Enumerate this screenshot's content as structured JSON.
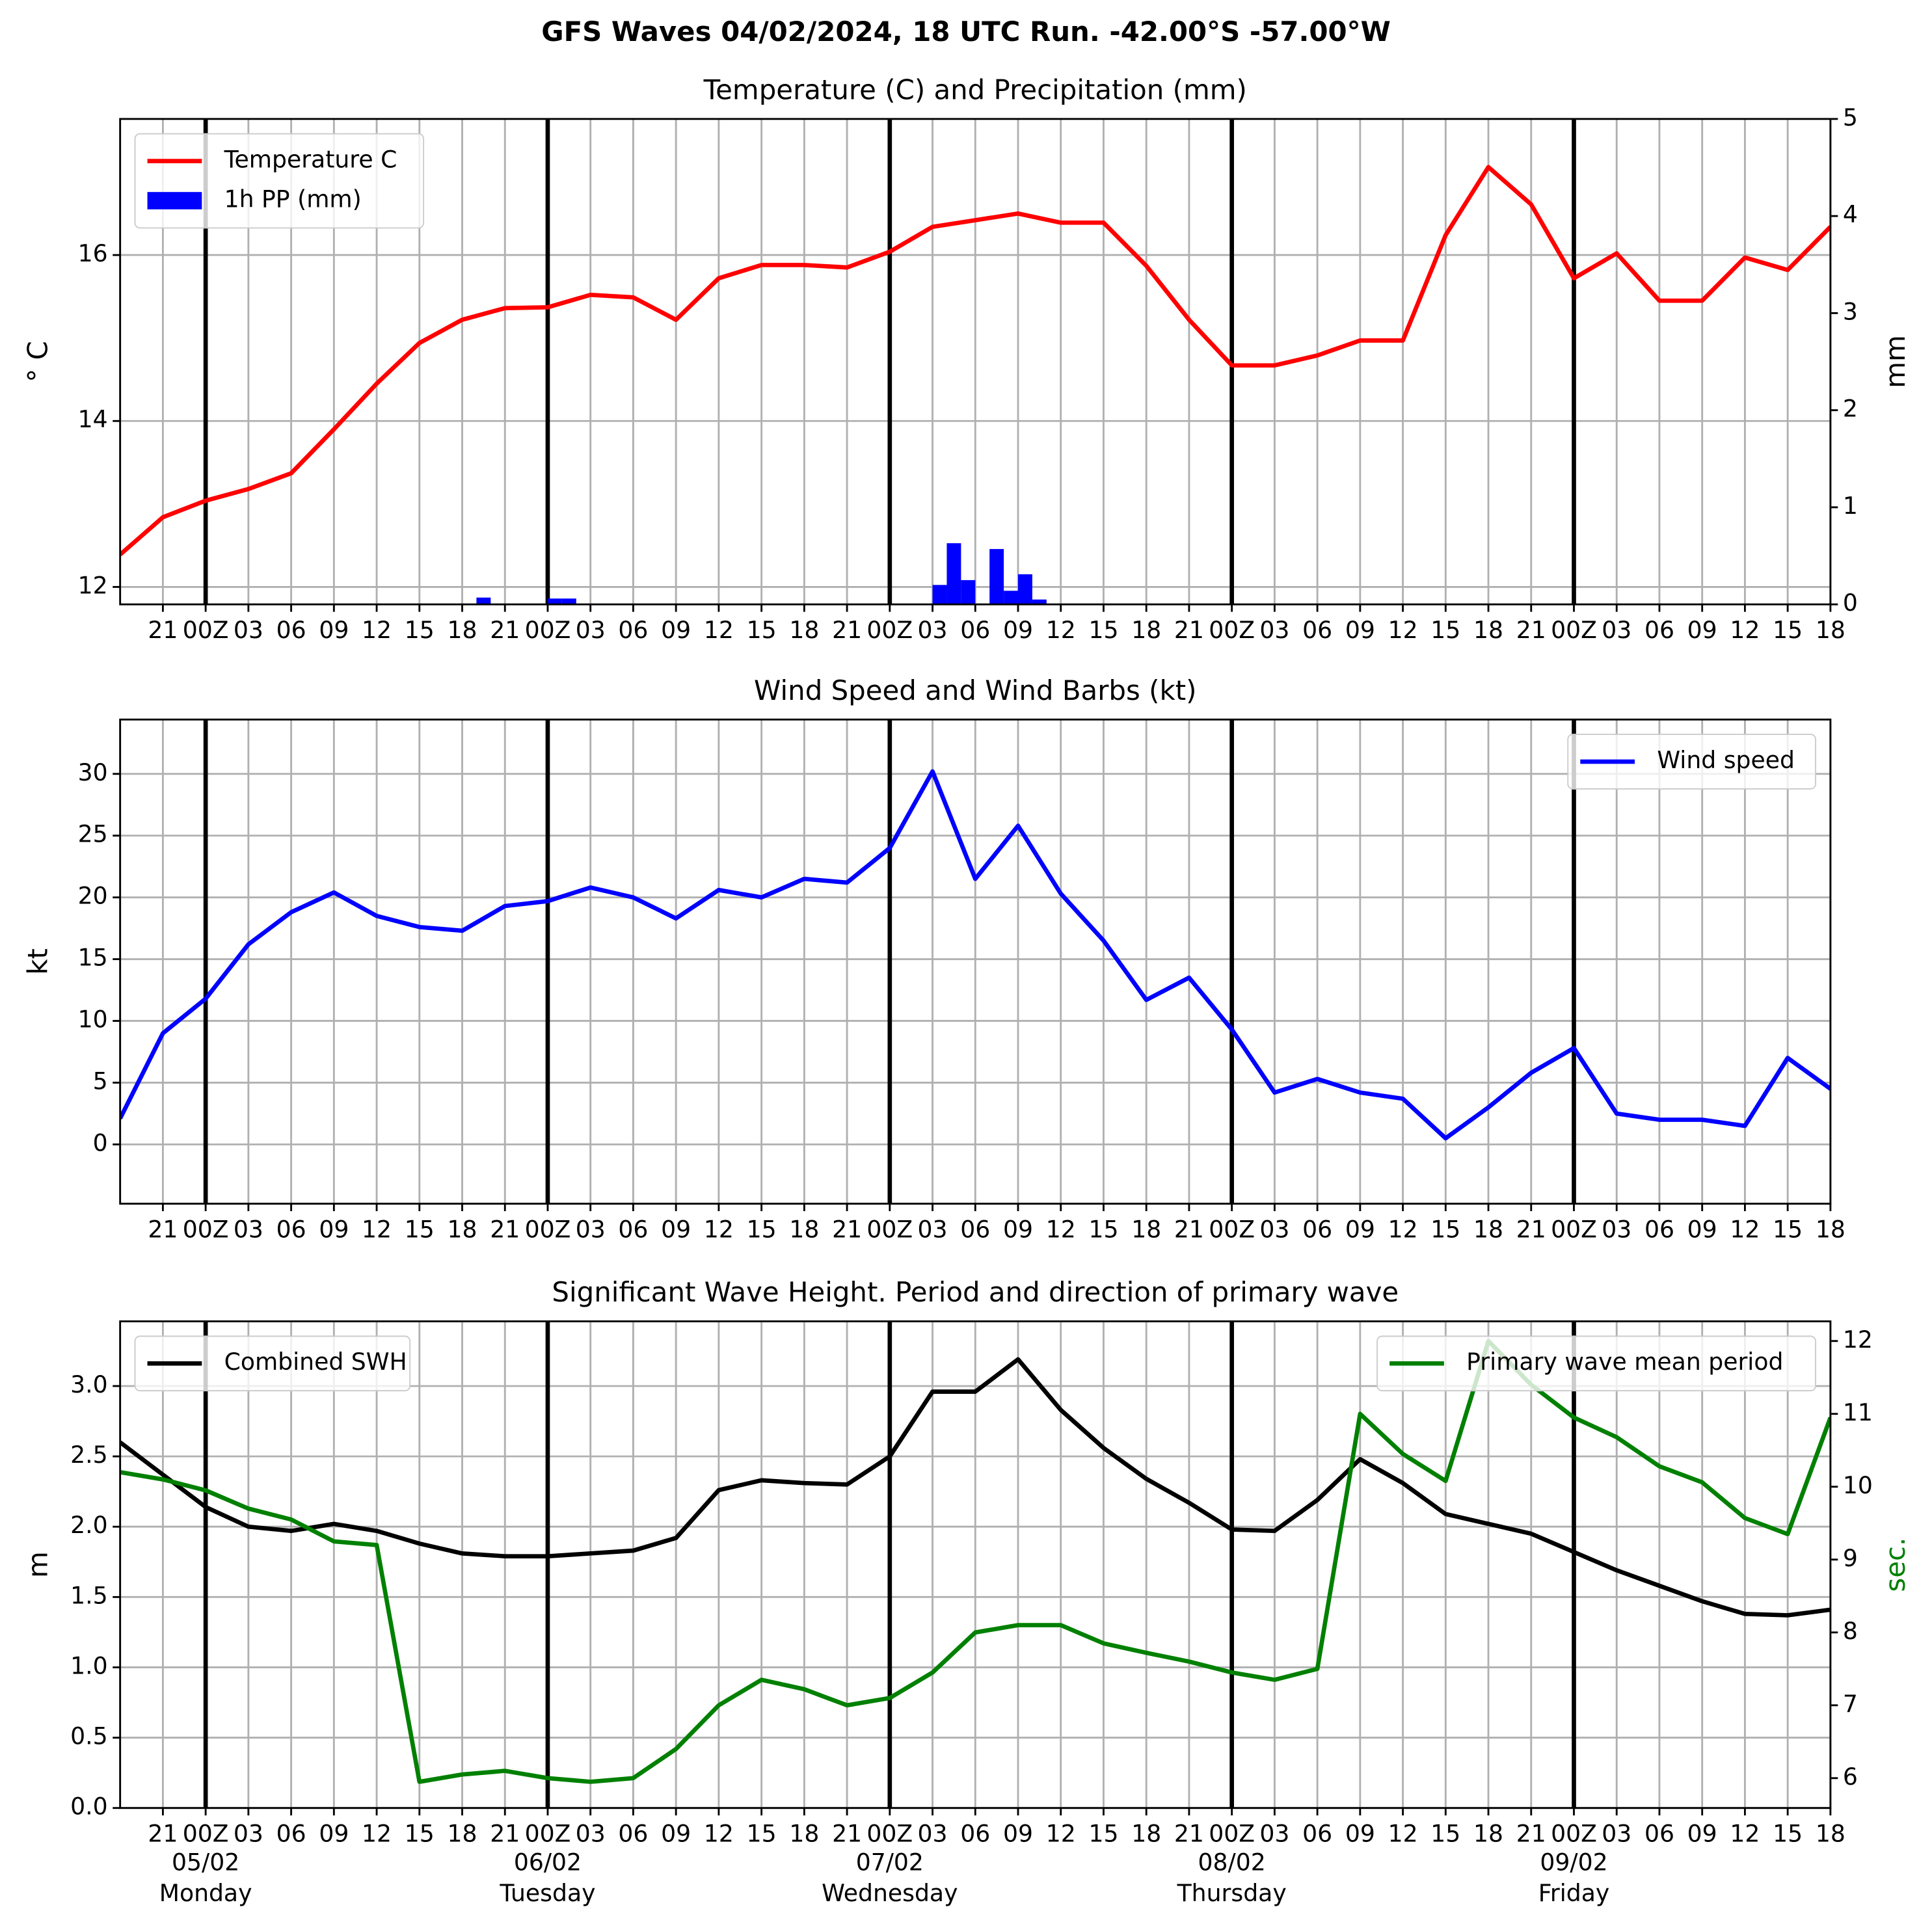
{
  "title": "GFS Waves 04/02/2024, 18 UTC Run. -42.00°S -57.00°W",
  "chart_data": [
    {
      "type": "line",
      "title": "Temperature (C) and Precipitation (mm)",
      "ylabel": "° C",
      "y2label": "mm",
      "grid": true,
      "xlim": [
        0,
        120
      ],
      "xticks": [
        {
          "value": 3,
          "label": "21"
        },
        {
          "value": 6,
          "label": "00Z"
        },
        {
          "value": 9,
          "label": "03"
        },
        {
          "value": 12,
          "label": "06"
        },
        {
          "value": 15,
          "label": "09"
        },
        {
          "value": 18,
          "label": "12"
        },
        {
          "value": 21,
          "label": "15"
        },
        {
          "value": 24,
          "label": "18"
        },
        {
          "value": 27,
          "label": "21"
        },
        {
          "value": 30,
          "label": "00Z"
        },
        {
          "value": 33,
          "label": "03"
        },
        {
          "value": 36,
          "label": "06"
        },
        {
          "value": 39,
          "label": "09"
        },
        {
          "value": 42,
          "label": "12"
        },
        {
          "value": 45,
          "label": "15"
        },
        {
          "value": 48,
          "label": "18"
        },
        {
          "value": 51,
          "label": "21"
        },
        {
          "value": 54,
          "label": "00Z"
        },
        {
          "value": 57,
          "label": "03"
        },
        {
          "value": 60,
          "label": "06"
        },
        {
          "value": 63,
          "label": "09"
        },
        {
          "value": 66,
          "label": "12"
        },
        {
          "value": 69,
          "label": "15"
        },
        {
          "value": 72,
          "label": "18"
        },
        {
          "value": 75,
          "label": "21"
        },
        {
          "value": 78,
          "label": "00Z"
        },
        {
          "value": 81,
          "label": "03"
        },
        {
          "value": 84,
          "label": "06"
        },
        {
          "value": 87,
          "label": "09"
        },
        {
          "value": 90,
          "label": "12"
        },
        {
          "value": 93,
          "label": "15"
        },
        {
          "value": 96,
          "label": "18"
        },
        {
          "value": 99,
          "label": "21"
        },
        {
          "value": 102,
          "label": "00Z"
        },
        {
          "value": 105,
          "label": "03"
        },
        {
          "value": 108,
          "label": "06"
        },
        {
          "value": 111,
          "label": "09"
        },
        {
          "value": 114,
          "label": "12"
        },
        {
          "value": 117,
          "label": "15"
        },
        {
          "value": 120,
          "label": "18"
        }
      ],
      "ylim": [
        11.79,
        17.64
      ],
      "yticks": [
        12,
        14,
        16
      ],
      "y2lim": [
        0,
        5
      ],
      "y2ticks": [
        0,
        1,
        2,
        3,
        4,
        5
      ],
      "x": [
        0,
        3,
        6,
        9,
        12,
        15,
        18,
        21,
        24,
        27,
        30,
        33,
        36,
        39,
        42,
        45,
        48,
        51,
        54,
        57,
        60,
        63,
        66,
        69,
        72,
        75,
        78,
        81,
        84,
        87,
        90,
        93,
        96,
        99,
        102,
        105,
        108,
        111,
        114,
        117,
        120
      ],
      "series": [
        {
          "name": "Temperature C",
          "color": "#ff0000",
          "legend": "upper left",
          "values": [
            12.39,
            12.84,
            13.04,
            13.18,
            13.37,
            13.9,
            14.45,
            14.94,
            15.22,
            15.36,
            15.37,
            15.52,
            15.49,
            15.22,
            15.72,
            15.88,
            15.88,
            15.85,
            16.04,
            16.34,
            16.42,
            16.5,
            16.39,
            16.39,
            15.87,
            15.22,
            14.67,
            14.67,
            14.79,
            14.97,
            14.97,
            16.24,
            17.06,
            16.61,
            15.72,
            16.02,
            15.45,
            15.45,
            15.97,
            15.82,
            16.34
          ]
        },
        {
          "name": "1h PP (mm)",
          "type": "bar",
          "axis": "y2",
          "color": "#0000ff",
          "legend": "upper left",
          "x": [
            25,
            30,
            31,
            57,
            58,
            59,
            61,
            62,
            63,
            64
          ],
          "values": [
            0.07,
            0.06,
            0.06,
            0.2,
            0.63,
            0.25,
            0.57,
            0.14,
            0.31,
            0.05
          ]
        }
      ]
    },
    {
      "type": "line",
      "title": "Wind Speed and Wind Barbs (kt)",
      "ylabel": "kt",
      "grid": true,
      "xlim": [
        0,
        120
      ],
      "xticks": [
        {
          "value": 3,
          "label": "21"
        },
        {
          "value": 6,
          "label": "00Z"
        },
        {
          "value": 9,
          "label": "03"
        },
        {
          "value": 12,
          "label": "06"
        },
        {
          "value": 15,
          "label": "09"
        },
        {
          "value": 18,
          "label": "12"
        },
        {
          "value": 21,
          "label": "15"
        },
        {
          "value": 24,
          "label": "18"
        },
        {
          "value": 27,
          "label": "21"
        },
        {
          "value": 30,
          "label": "00Z"
        },
        {
          "value": 33,
          "label": "03"
        },
        {
          "value": 36,
          "label": "06"
        },
        {
          "value": 39,
          "label": "09"
        },
        {
          "value": 42,
          "label": "12"
        },
        {
          "value": 45,
          "label": "15"
        },
        {
          "value": 48,
          "label": "18"
        },
        {
          "value": 51,
          "label": "21"
        },
        {
          "value": 54,
          "label": "00Z"
        },
        {
          "value": 57,
          "label": "03"
        },
        {
          "value": 60,
          "label": "06"
        },
        {
          "value": 63,
          "label": "09"
        },
        {
          "value": 66,
          "label": "12"
        },
        {
          "value": 69,
          "label": "15"
        },
        {
          "value": 72,
          "label": "18"
        },
        {
          "value": 75,
          "label": "21"
        },
        {
          "value": 78,
          "label": "00Z"
        },
        {
          "value": 81,
          "label": "03"
        },
        {
          "value": 84,
          "label": "06"
        },
        {
          "value": 87,
          "label": "09"
        },
        {
          "value": 90,
          "label": "12"
        },
        {
          "value": 93,
          "label": "15"
        },
        {
          "value": 96,
          "label": "18"
        },
        {
          "value": 99,
          "label": "21"
        },
        {
          "value": 102,
          "label": "00Z"
        },
        {
          "value": 105,
          "label": "03"
        },
        {
          "value": 108,
          "label": "06"
        },
        {
          "value": 111,
          "label": "09"
        },
        {
          "value": 114,
          "label": "12"
        },
        {
          "value": 117,
          "label": "15"
        },
        {
          "value": 120,
          "label": "18"
        }
      ],
      "ylim": [
        -4.8,
        34.4
      ],
      "yticks": [
        0,
        5,
        10,
        15,
        20,
        25,
        30
      ],
      "x": [
        0,
        3,
        6,
        9,
        12,
        15,
        18,
        21,
        24,
        27,
        30,
        33,
        36,
        39,
        42,
        45,
        48,
        51,
        54,
        57,
        60,
        63,
        66,
        69,
        72,
        75,
        78,
        81,
        84,
        87,
        90,
        93,
        96,
        99,
        102,
        105,
        108,
        111,
        114,
        117,
        120
      ],
      "series": [
        {
          "name": "Wind speed",
          "color": "#0000ff",
          "legend": "upper right",
          "values": [
            2.1,
            9.0,
            11.8,
            16.2,
            18.8,
            20.4,
            18.5,
            17.6,
            17.3,
            19.3,
            19.7,
            20.8,
            20.0,
            18.3,
            20.6,
            20.0,
            21.5,
            21.2,
            24.0,
            30.2,
            21.5,
            25.8,
            20.3,
            16.5,
            11.7,
            13.5,
            9.3,
            4.2,
            5.3,
            4.2,
            3.7,
            0.5,
            3.0,
            5.8,
            7.8,
            2.5,
            2.0,
            2.0,
            1.5,
            7.0,
            4.5
          ]
        }
      ]
    },
    {
      "type": "line",
      "title": "Significant Wave Height. Period and direction of primary wave",
      "ylabel": "m",
      "y2label": "sec.",
      "y2color": "#008000",
      "grid": true,
      "xlim": [
        0,
        120
      ],
      "xticks": [
        {
          "value": 3,
          "label": "21"
        },
        {
          "value": 6,
          "label": "00Z"
        },
        {
          "value": 9,
          "label": "03"
        },
        {
          "value": 12,
          "label": "06"
        },
        {
          "value": 15,
          "label": "09"
        },
        {
          "value": 18,
          "label": "12"
        },
        {
          "value": 21,
          "label": "15"
        },
        {
          "value": 24,
          "label": "18"
        },
        {
          "value": 27,
          "label": "21"
        },
        {
          "value": 30,
          "label": "00Z"
        },
        {
          "value": 33,
          "label": "03"
        },
        {
          "value": 36,
          "label": "06"
        },
        {
          "value": 39,
          "label": "09"
        },
        {
          "value": 42,
          "label": "12"
        },
        {
          "value": 45,
          "label": "15"
        },
        {
          "value": 48,
          "label": "18"
        },
        {
          "value": 51,
          "label": "21"
        },
        {
          "value": 54,
          "label": "00Z"
        },
        {
          "value": 57,
          "label": "03"
        },
        {
          "value": 60,
          "label": "06"
        },
        {
          "value": 63,
          "label": "09"
        },
        {
          "value": 66,
          "label": "12"
        },
        {
          "value": 69,
          "label": "15"
        },
        {
          "value": 72,
          "label": "18"
        },
        {
          "value": 75,
          "label": "21"
        },
        {
          "value": 78,
          "label": "00Z"
        },
        {
          "value": 81,
          "label": "03"
        },
        {
          "value": 84,
          "label": "06"
        },
        {
          "value": 87,
          "label": "09"
        },
        {
          "value": 90,
          "label": "12"
        },
        {
          "value": 93,
          "label": "15"
        },
        {
          "value": 96,
          "label": "18"
        },
        {
          "value": 99,
          "label": "21"
        },
        {
          "value": 102,
          "label": "00Z"
        },
        {
          "value": 105,
          "label": "03"
        },
        {
          "value": 108,
          "label": "06"
        },
        {
          "value": 111,
          "label": "09"
        },
        {
          "value": 114,
          "label": "12"
        },
        {
          "value": 117,
          "label": "15"
        },
        {
          "value": 120,
          "label": "18"
        }
      ],
      "day_labels": [
        {
          "value": 6,
          "date": "05/02",
          "day": "Monday"
        },
        {
          "value": 30,
          "date": "06/02",
          "day": "Tuesday"
        },
        {
          "value": 54,
          "date": "07/02",
          "day": "Wednesday"
        },
        {
          "value": 78,
          "date": "08/02",
          "day": "Thursday"
        },
        {
          "value": 102,
          "date": "09/02",
          "day": "Friday"
        }
      ],
      "ylim": [
        0,
        3.46
      ],
      "yticks": [
        {
          "value": 0,
          "label": "0.0"
        },
        {
          "value": 0.5,
          "label": "0.5"
        },
        {
          "value": 1,
          "label": "1.0"
        },
        {
          "value": 1.5,
          "label": "1.5"
        },
        {
          "value": 2,
          "label": "2.0"
        },
        {
          "value": 2.5,
          "label": "2.5"
        },
        {
          "value": 3,
          "label": "3.0"
        }
      ],
      "y2lim": [
        5.59,
        12.27
      ],
      "y2ticks": [
        6,
        7,
        8,
        9,
        10,
        11,
        12
      ],
      "x": [
        0,
        3,
        6,
        9,
        12,
        15,
        18,
        21,
        24,
        27,
        30,
        33,
        36,
        39,
        42,
        45,
        48,
        51,
        54,
        57,
        60,
        63,
        66,
        69,
        72,
        75,
        78,
        81,
        84,
        87,
        90,
        93,
        96,
        99,
        102,
        105,
        108,
        111,
        114,
        117,
        120
      ],
      "series": [
        {
          "name": "Combined SWH",
          "color": "#000000",
          "legend": "upper left",
          "values": [
            2.6,
            2.37,
            2.14,
            2.0,
            1.97,
            2.02,
            1.97,
            1.88,
            1.81,
            1.79,
            1.79,
            1.81,
            1.83,
            1.92,
            2.26,
            2.33,
            2.31,
            2.3,
            2.5,
            2.96,
            2.96,
            3.19,
            2.83,
            2.56,
            2.34,
            2.17,
            1.98,
            1.97,
            2.19,
            2.48,
            2.31,
            2.09,
            2.02,
            1.95,
            1.82,
            1.69,
            1.58,
            1.47,
            1.38,
            1.37,
            1.41
          ]
        },
        {
          "name": "Primary wave mean period",
          "color": "#008000",
          "axis": "y2",
          "legend": "upper right",
          "values": [
            10.2,
            10.1,
            9.95,
            9.7,
            9.55,
            9.25,
            9.2,
            5.95,
            6.05,
            6.1,
            6.0,
            5.95,
            6.0,
            6.4,
            7.0,
            7.35,
            7.22,
            7.0,
            7.1,
            7.45,
            8.0,
            8.1,
            8.1,
            7.85,
            7.72,
            7.6,
            7.45,
            7.35,
            7.5,
            11.0,
            10.45,
            10.08,
            12.0,
            11.4,
            10.95,
            10.68,
            10.28,
            10.06,
            9.57,
            9.35,
            10.95
          ]
        }
      ]
    }
  ]
}
